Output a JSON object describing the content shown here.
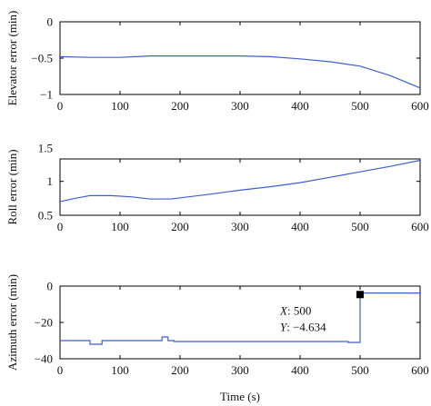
{
  "chart_data": [
    {
      "type": "line",
      "ylabel": "Elevator error (min)",
      "xlabel": "",
      "xlim": [
        0,
        600
      ],
      "ylim": [
        -1,
        0
      ],
      "xticks": [
        "0",
        "100",
        "200",
        "300",
        "400",
        "500",
        "600"
      ],
      "yticks": [
        "0",
        "−0.5",
        "−1"
      ],
      "ytick_values": [
        0,
        -0.5,
        -1
      ],
      "grid": false,
      "series": [
        {
          "x": [
            0,
            50,
            100,
            150,
            200,
            250,
            300,
            350,
            400,
            450,
            500,
            550,
            600
          ],
          "y": [
            -0.48,
            -0.49,
            -0.49,
            -0.47,
            -0.47,
            -0.47,
            -0.47,
            -0.48,
            -0.51,
            -0.55,
            -0.61,
            -0.74,
            -0.91
          ]
        }
      ],
      "color": "#3c5fcf"
    },
    {
      "type": "line",
      "ylabel": "Roll error (min)",
      "xlabel": "",
      "xlim": [
        0,
        600
      ],
      "ylim": [
        0.5,
        1.33
      ],
      "xticks": [
        "0",
        "100",
        "200",
        "300",
        "400",
        "500",
        "600"
      ],
      "yticks": [
        "0.5",
        "1",
        "1.5"
      ],
      "ytick_values": [
        0.5,
        1,
        1.5
      ],
      "grid": false,
      "series": [
        {
          "x": [
            0,
            20,
            50,
            85,
            120,
            150,
            185,
            250,
            300,
            350,
            400,
            450,
            500,
            550,
            600
          ],
          "y": [
            0.7,
            0.74,
            0.79,
            0.79,
            0.77,
            0.74,
            0.74,
            0.81,
            0.87,
            0.92,
            0.98,
            1.06,
            1.14,
            1.22,
            1.31
          ]
        }
      ],
      "color": "#3c5fcf"
    },
    {
      "type": "line",
      "ylabel": "Azimuth error (min)",
      "xlabel": "Time (s)",
      "xlim": [
        0,
        600
      ],
      "ylim": [
        -40,
        0
      ],
      "xticks": [
        "0",
        "100",
        "200",
        "300",
        "400",
        "500",
        "600"
      ],
      "yticks": [
        "0",
        "−20",
        "−40"
      ],
      "ytick_values": [
        0,
        -20,
        -40
      ],
      "grid": false,
      "series": [
        {
          "x": [
            0,
            50,
            50,
            70,
            70,
            170,
            170,
            180,
            180,
            190,
            190,
            480,
            480,
            500,
            500,
            600
          ],
          "y": [
            -30,
            -30,
            -32,
            -32,
            -30,
            -30,
            -28,
            -28,
            -30,
            -30,
            -30.5,
            -30.5,
            -31,
            -31,
            -3.8,
            -3.8
          ]
        }
      ],
      "color": "#3c5fcf",
      "datatip": {
        "x_value": 500,
        "y_value": -4.634,
        "line1_name": "X",
        "line1_value": ": 500",
        "line2_name": "Y",
        "line2_value": ": −4.634"
      }
    }
  ]
}
